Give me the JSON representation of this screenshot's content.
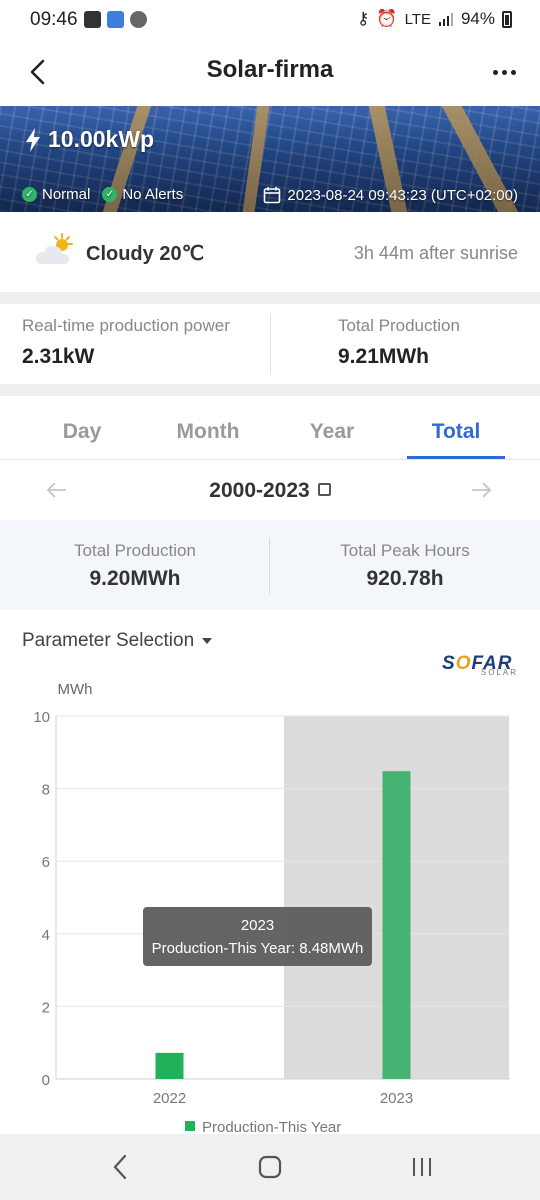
{
  "status_bar": {
    "time": "09:46",
    "network": "LTE",
    "battery": "94%"
  },
  "app_bar": {
    "title": "Solar-firma"
  },
  "banner": {
    "capacity": "10.00kWp",
    "status_normal": "Normal",
    "status_alerts": "No Alerts",
    "timestamp": "2023-08-24 09:43:23 (UTC+02:00)"
  },
  "weather": {
    "condition": "Cloudy 20℃",
    "sunrise_info": "3h 44m after sunrise"
  },
  "realtime": {
    "power_label": "Real-time production power",
    "power_value": "2.31kW",
    "total_label": "Total Production",
    "total_value": "9.21MWh"
  },
  "tabs": [
    {
      "label": "Day",
      "active": false
    },
    {
      "label": "Month",
      "active": false
    },
    {
      "label": "Year",
      "active": false
    },
    {
      "label": "Total",
      "active": true
    }
  ],
  "date_range": "2000-2023",
  "summary": {
    "production_label": "Total Production",
    "production_value": "9.20MWh",
    "peak_label": "Total Peak Hours",
    "peak_value": "920.78h"
  },
  "parameter_selection": "Parameter Selection",
  "logo": {
    "main": "SOFAR",
    "sub": "SOLAR"
  },
  "colors": {
    "accent": "#2f6bd0",
    "bar_2022": "#22b05a",
    "bar_2023": "#45b472",
    "highlight_band": "#dcdcdc",
    "tooltip_bg": "#5e5e5e"
  },
  "chart_data": {
    "type": "bar",
    "ylabel": "MWh",
    "ylim": [
      0,
      10
    ],
    "yticks": [
      "0",
      "2",
      "4",
      "6",
      "8",
      "10"
    ],
    "categories": [
      "2022",
      "2023"
    ],
    "series": [
      {
        "name": "Production-This Year",
        "values": [
          0.72,
          8.48
        ]
      }
    ],
    "highlighted_category": "2023",
    "tooltip": {
      "title": "2023",
      "text": "Production-This Year: 8.48MWh"
    },
    "legend_position": "bottom",
    "grid": true
  }
}
